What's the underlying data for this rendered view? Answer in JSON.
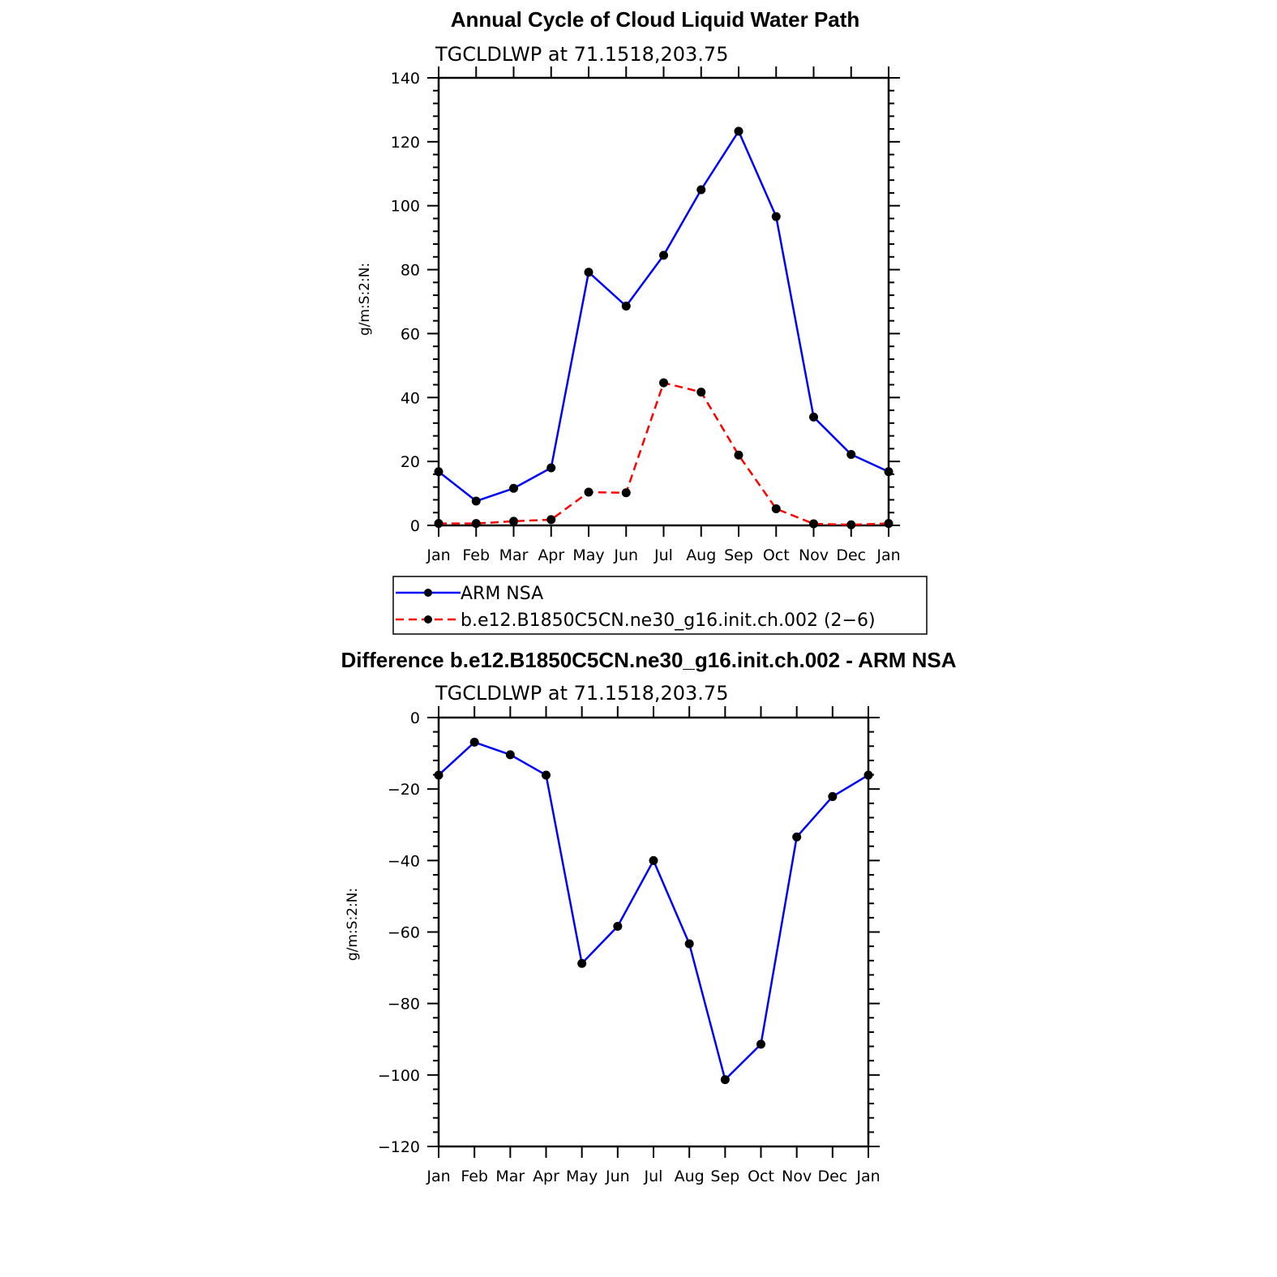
{
  "chart_data": [
    {
      "type": "line",
      "title": "Annual Cycle of Cloud Liquid Water Path",
      "subtitle": "TGCLDLWP  at  71.1518,203.75",
      "ylabel": "g/m:S:2:N:",
      "ylim": [
        0,
        140
      ],
      "yticks": [
        0,
        20,
        40,
        60,
        80,
        100,
        120,
        140
      ],
      "categories": [
        "Jan",
        "Feb",
        "Mar",
        "Apr",
        "May",
        "Jun",
        "Jul",
        "Aug",
        "Sep",
        "Oct",
        "Nov",
        "Dec",
        "Jan"
      ],
      "series": [
        {
          "name": "ARM  NSA",
          "color": "#0000ff",
          "dash": "solid",
          "values": [
            16.8,
            7.6,
            11.6,
            18.0,
            79.2,
            68.6,
            84.5,
            105.0,
            123.3,
            96.6,
            33.9,
            22.2,
            16.8
          ]
        },
        {
          "name": "b.e12.B1850C5CN.ne30_g16.init.ch.002  (2−6)",
          "color": "#ff0000",
          "dash": "dashed",
          "values": [
            0.6,
            0.6,
            1.3,
            1.8,
            10.4,
            10.2,
            44.6,
            41.7,
            22.0,
            5.2,
            0.5,
            0.2,
            0.6
          ]
        }
      ],
      "legend_position": "below"
    },
    {
      "type": "line",
      "title": "Difference b.e12.B1850C5CN.ne30_g16.init.ch.002 - ARM NSA",
      "subtitle": "TGCLDLWP  at  71.1518,203.75",
      "ylabel": "g/m:S:2:N:",
      "ylim": [
        -120,
        0
      ],
      "yticks": [
        -120,
        -100,
        -80,
        -60,
        -40,
        -20,
        0
      ],
      "categories": [
        "Jan",
        "Feb",
        "Mar",
        "Apr",
        "May",
        "Jun",
        "Jul",
        "Aug",
        "Sep",
        "Oct",
        "Nov",
        "Dec",
        "Jan"
      ],
      "series": [
        {
          "color": "#0000ff",
          "dash": "solid",
          "values": [
            -16.1,
            -6.9,
            -10.4,
            -16.1,
            -68.8,
            -58.4,
            -40.0,
            -63.3,
            -101.3,
            -91.4,
            -33.4,
            -22.1,
            -16.1
          ]
        }
      ]
    }
  ]
}
